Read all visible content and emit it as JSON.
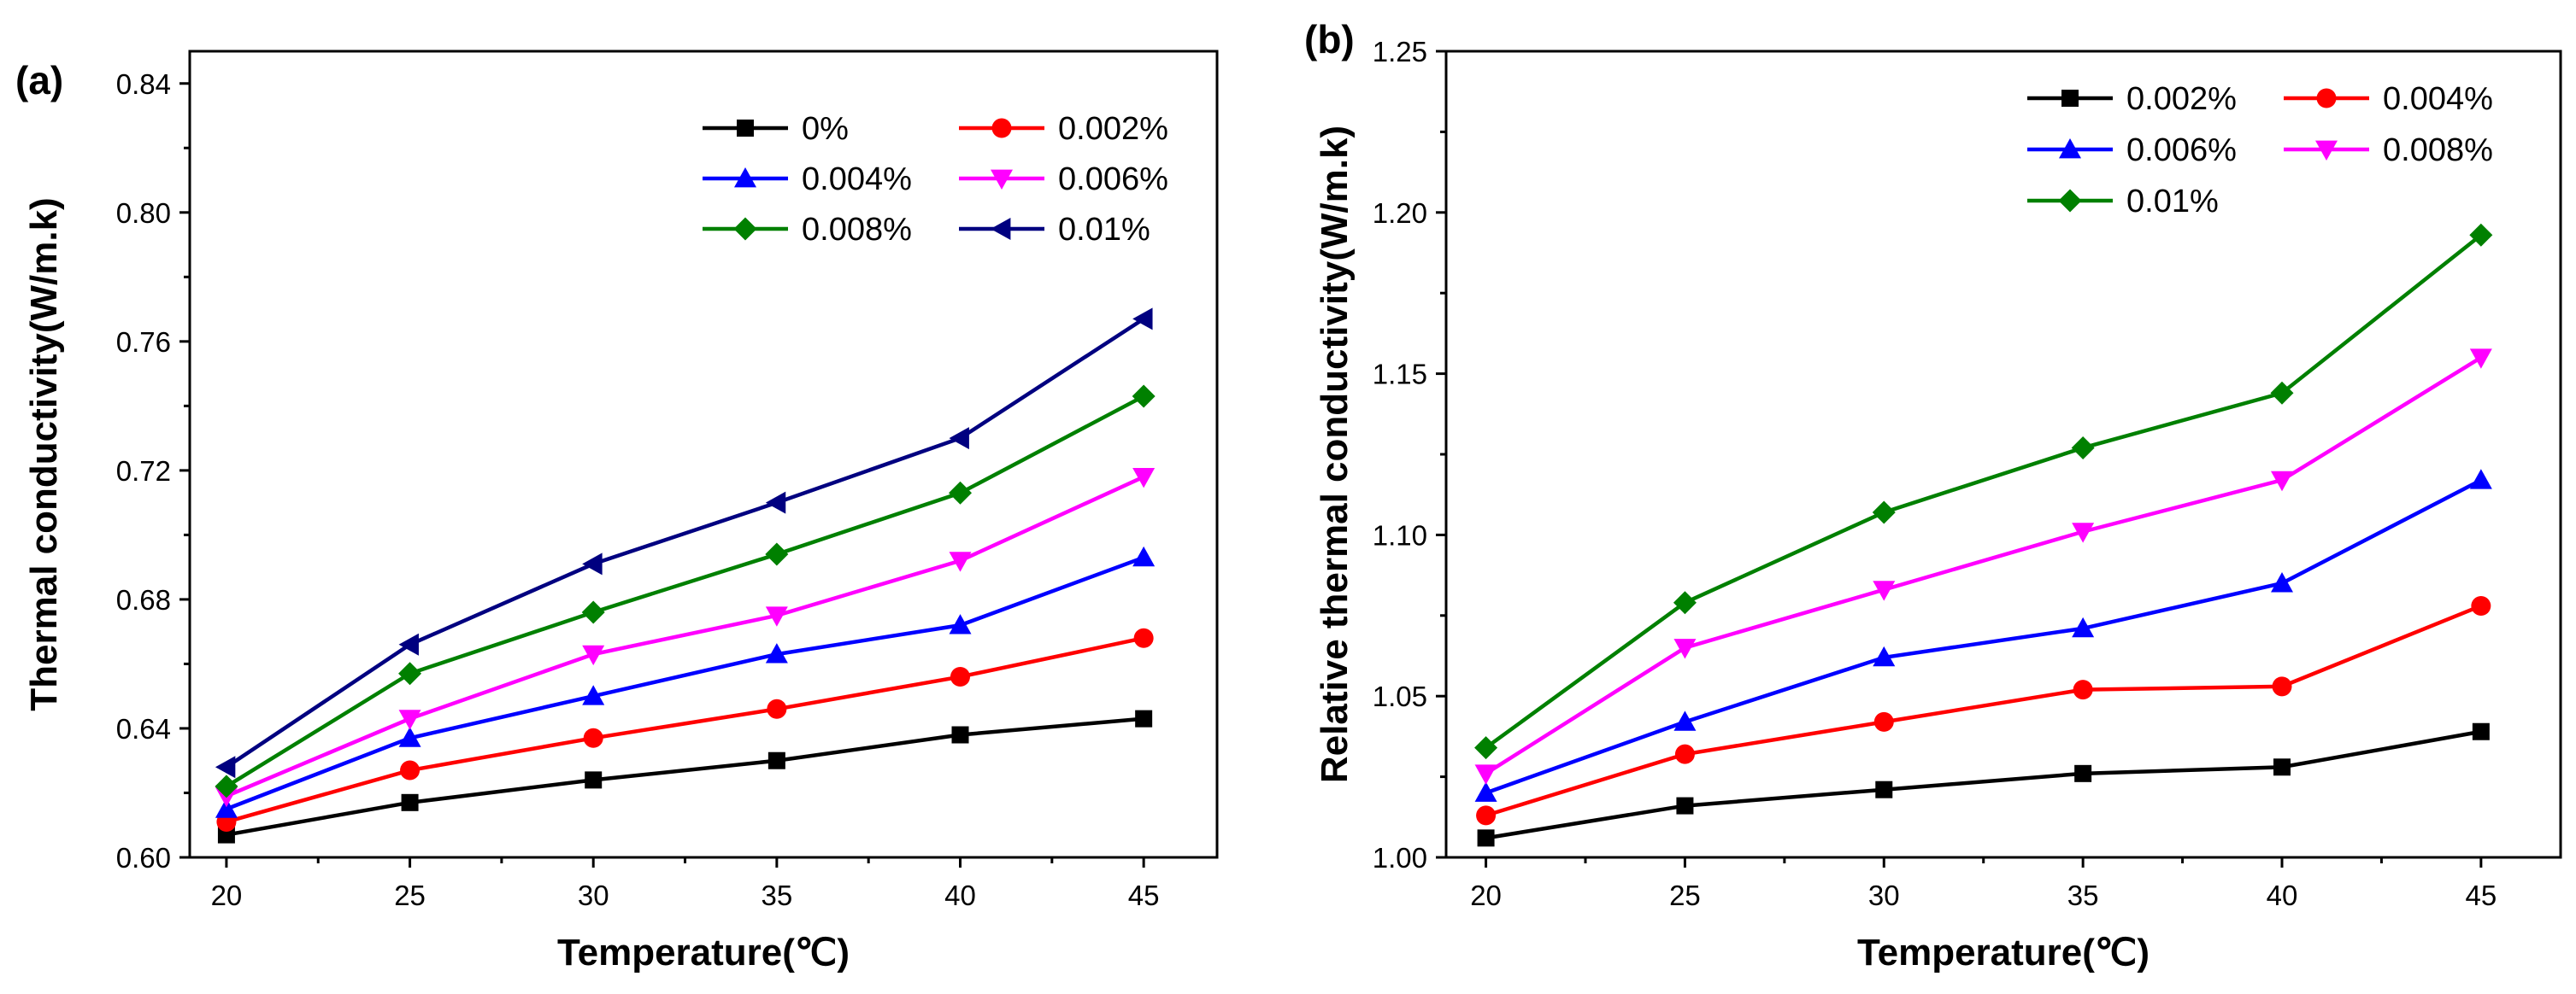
{
  "chart_data": [
    {
      "type": "line",
      "panel_label": "(a)",
      "xlabel": "Temperature(℃)",
      "ylabel": "Thermal conductivity(W/m.k)",
      "x": [
        20,
        25,
        30,
        35,
        40,
        45
      ],
      "xticks": [
        "20",
        "25",
        "30",
        "35",
        "40",
        "45"
      ],
      "xlim": [
        19,
        47
      ],
      "yticks": [
        "0.60",
        "0.64",
        "0.68",
        "0.72",
        "0.76",
        "0.80",
        "0.84"
      ],
      "ylim": [
        0.6,
        0.85
      ],
      "legend_position": "top-right",
      "legend_columns": 2,
      "series": [
        {
          "name": "0%",
          "color": "#000000",
          "marker": "square",
          "values": [
            0.607,
            0.617,
            0.624,
            0.63,
            0.638,
            0.643
          ]
        },
        {
          "name": "0.002%",
          "color": "#ff0000",
          "marker": "circle",
          "values": [
            0.611,
            0.627,
            0.637,
            0.646,
            0.656,
            0.668
          ]
        },
        {
          "name": "0.004%",
          "color": "#0000ff",
          "marker": "triangle-up",
          "values": [
            0.615,
            0.637,
            0.65,
            0.663,
            0.672,
            0.693
          ]
        },
        {
          "name": "0.006%",
          "color": "#ff00ff",
          "marker": "triangle-down",
          "values": [
            0.619,
            0.643,
            0.663,
            0.675,
            0.692,
            0.718
          ]
        },
        {
          "name": "0.008%",
          "color": "#008000",
          "marker": "diamond",
          "values": [
            0.622,
            0.657,
            0.676,
            0.694,
            0.713,
            0.743
          ]
        },
        {
          "name": "0.01%",
          "color": "#000080",
          "marker": "triangle-left",
          "values": [
            0.628,
            0.666,
            0.691,
            0.71,
            0.73,
            0.767
          ]
        }
      ]
    },
    {
      "type": "line",
      "panel_label": "(b)",
      "xlabel": "Temperature(℃)",
      "ylabel": "Relative thermal conductivity(W/m.k)",
      "x": [
        20,
        25,
        30,
        35,
        40,
        45
      ],
      "xticks": [
        "20",
        "25",
        "30",
        "35",
        "40",
        "45"
      ],
      "xlim": [
        19,
        47
      ],
      "yticks": [
        "1.00",
        "1.05",
        "1.10",
        "1.15",
        "1.20",
        "1.25"
      ],
      "ylim": [
        1.0,
        1.25
      ],
      "legend_position": "top-right",
      "legend_columns": 2,
      "series": [
        {
          "name": "0.002%",
          "color": "#000000",
          "marker": "square",
          "values": [
            1.006,
            1.016,
            1.021,
            1.026,
            1.028,
            1.039
          ]
        },
        {
          "name": "0.004%",
          "color": "#ff0000",
          "marker": "circle",
          "values": [
            1.013,
            1.032,
            1.042,
            1.052,
            1.053,
            1.078
          ]
        },
        {
          "name": "0.006%",
          "color": "#0000ff",
          "marker": "triangle-up",
          "values": [
            1.02,
            1.042,
            1.062,
            1.071,
            1.085,
            1.117
          ]
        },
        {
          "name": "0.008%",
          "color": "#ff00ff",
          "marker": "triangle-down",
          "values": [
            1.026,
            1.065,
            1.083,
            1.101,
            1.117,
            1.155
          ]
        },
        {
          "name": "0.01%",
          "color": "#008000",
          "marker": "diamond",
          "values": [
            1.034,
            1.079,
            1.107,
            1.127,
            1.144,
            1.193
          ]
        }
      ]
    }
  ]
}
